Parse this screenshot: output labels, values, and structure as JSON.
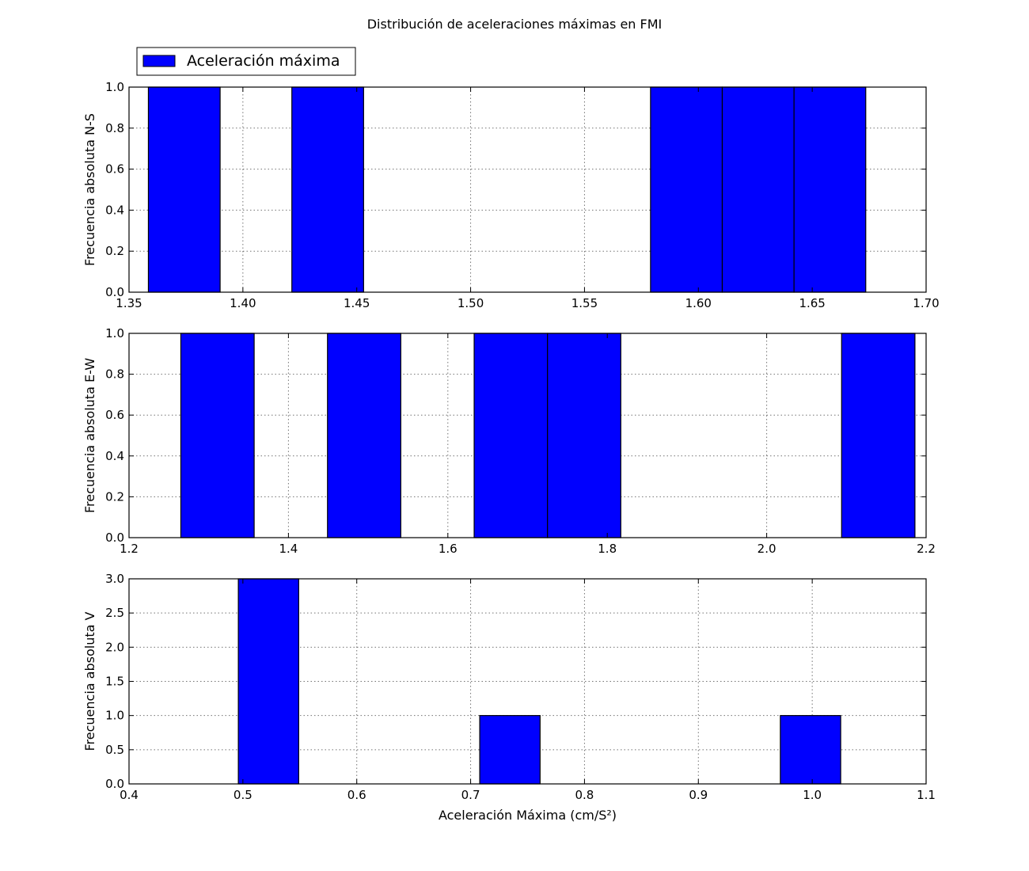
{
  "figure_title": "Distribución de aceleraciones máximas en FMI",
  "legend": {
    "label": "Aceleración máxima",
    "color": "#0000ff",
    "placement": "upper-left"
  },
  "chart_data": [
    {
      "type": "bar",
      "panel": "N-S",
      "ylabel": "Frecuencia absoluta N-S",
      "xlabel": "",
      "xlim": [
        1.35,
        1.7
      ],
      "ylim": [
        0,
        1.0
      ],
      "xticks": [
        "1.35",
        "1.40",
        "1.45",
        "1.50",
        "1.55",
        "1.60",
        "1.65",
        "1.70"
      ],
      "yticks": [
        "0.0",
        "0.2",
        "0.4",
        "0.6",
        "0.8",
        "1.0"
      ],
      "grid": true,
      "bins": [
        {
          "x0": 1.3585,
          "x1": 1.39,
          "value": 1
        },
        {
          "x0": 1.4215,
          "x1": 1.453,
          "value": 1
        },
        {
          "x0": 1.579,
          "x1": 1.6105,
          "value": 1
        },
        {
          "x0": 1.6105,
          "x1": 1.642,
          "value": 1
        },
        {
          "x0": 1.642,
          "x1": 1.6735,
          "value": 1
        }
      ]
    },
    {
      "type": "bar",
      "panel": "E-W",
      "ylabel": "Frecuencia absoluta E-W",
      "xlabel": "",
      "xlim": [
        1.2,
        2.2
      ],
      "ylim": [
        0,
        1.0
      ],
      "xticks": [
        "1.2",
        "1.4",
        "1.6",
        "1.8",
        "2.0",
        "2.2"
      ],
      "yticks": [
        "0.0",
        "0.2",
        "0.4",
        "0.6",
        "0.8",
        "1.0"
      ],
      "grid": true,
      "bins": [
        {
          "x0": 1.265,
          "x1": 1.357,
          "value": 1
        },
        {
          "x0": 1.449,
          "x1": 1.541,
          "value": 1
        },
        {
          "x0": 1.633,
          "x1": 1.725,
          "value": 1
        },
        {
          "x0": 1.725,
          "x1": 1.817,
          "value": 1
        },
        {
          "x0": 2.094,
          "x1": 2.186,
          "value": 1
        }
      ]
    },
    {
      "type": "bar",
      "panel": "V",
      "ylabel": "Frecuencia absoluta V",
      "xlabel": "Aceleración Máxima (cm/S²)",
      "xlim": [
        0.4,
        1.1
      ],
      "ylim": [
        0,
        3.0
      ],
      "xticks": [
        "0.4",
        "0.5",
        "0.6",
        "0.7",
        "0.8",
        "0.9",
        "1.0",
        "1.1"
      ],
      "yticks": [
        "0.0",
        "0.5",
        "1.0",
        "1.5",
        "2.0",
        "2.5",
        "3.0"
      ],
      "grid": true,
      "bins": [
        {
          "x0": 0.496,
          "x1": 0.549,
          "value": 3
        },
        {
          "x0": 0.708,
          "x1": 0.761,
          "value": 1
        },
        {
          "x0": 0.972,
          "x1": 1.025,
          "value": 1
        }
      ]
    }
  ]
}
